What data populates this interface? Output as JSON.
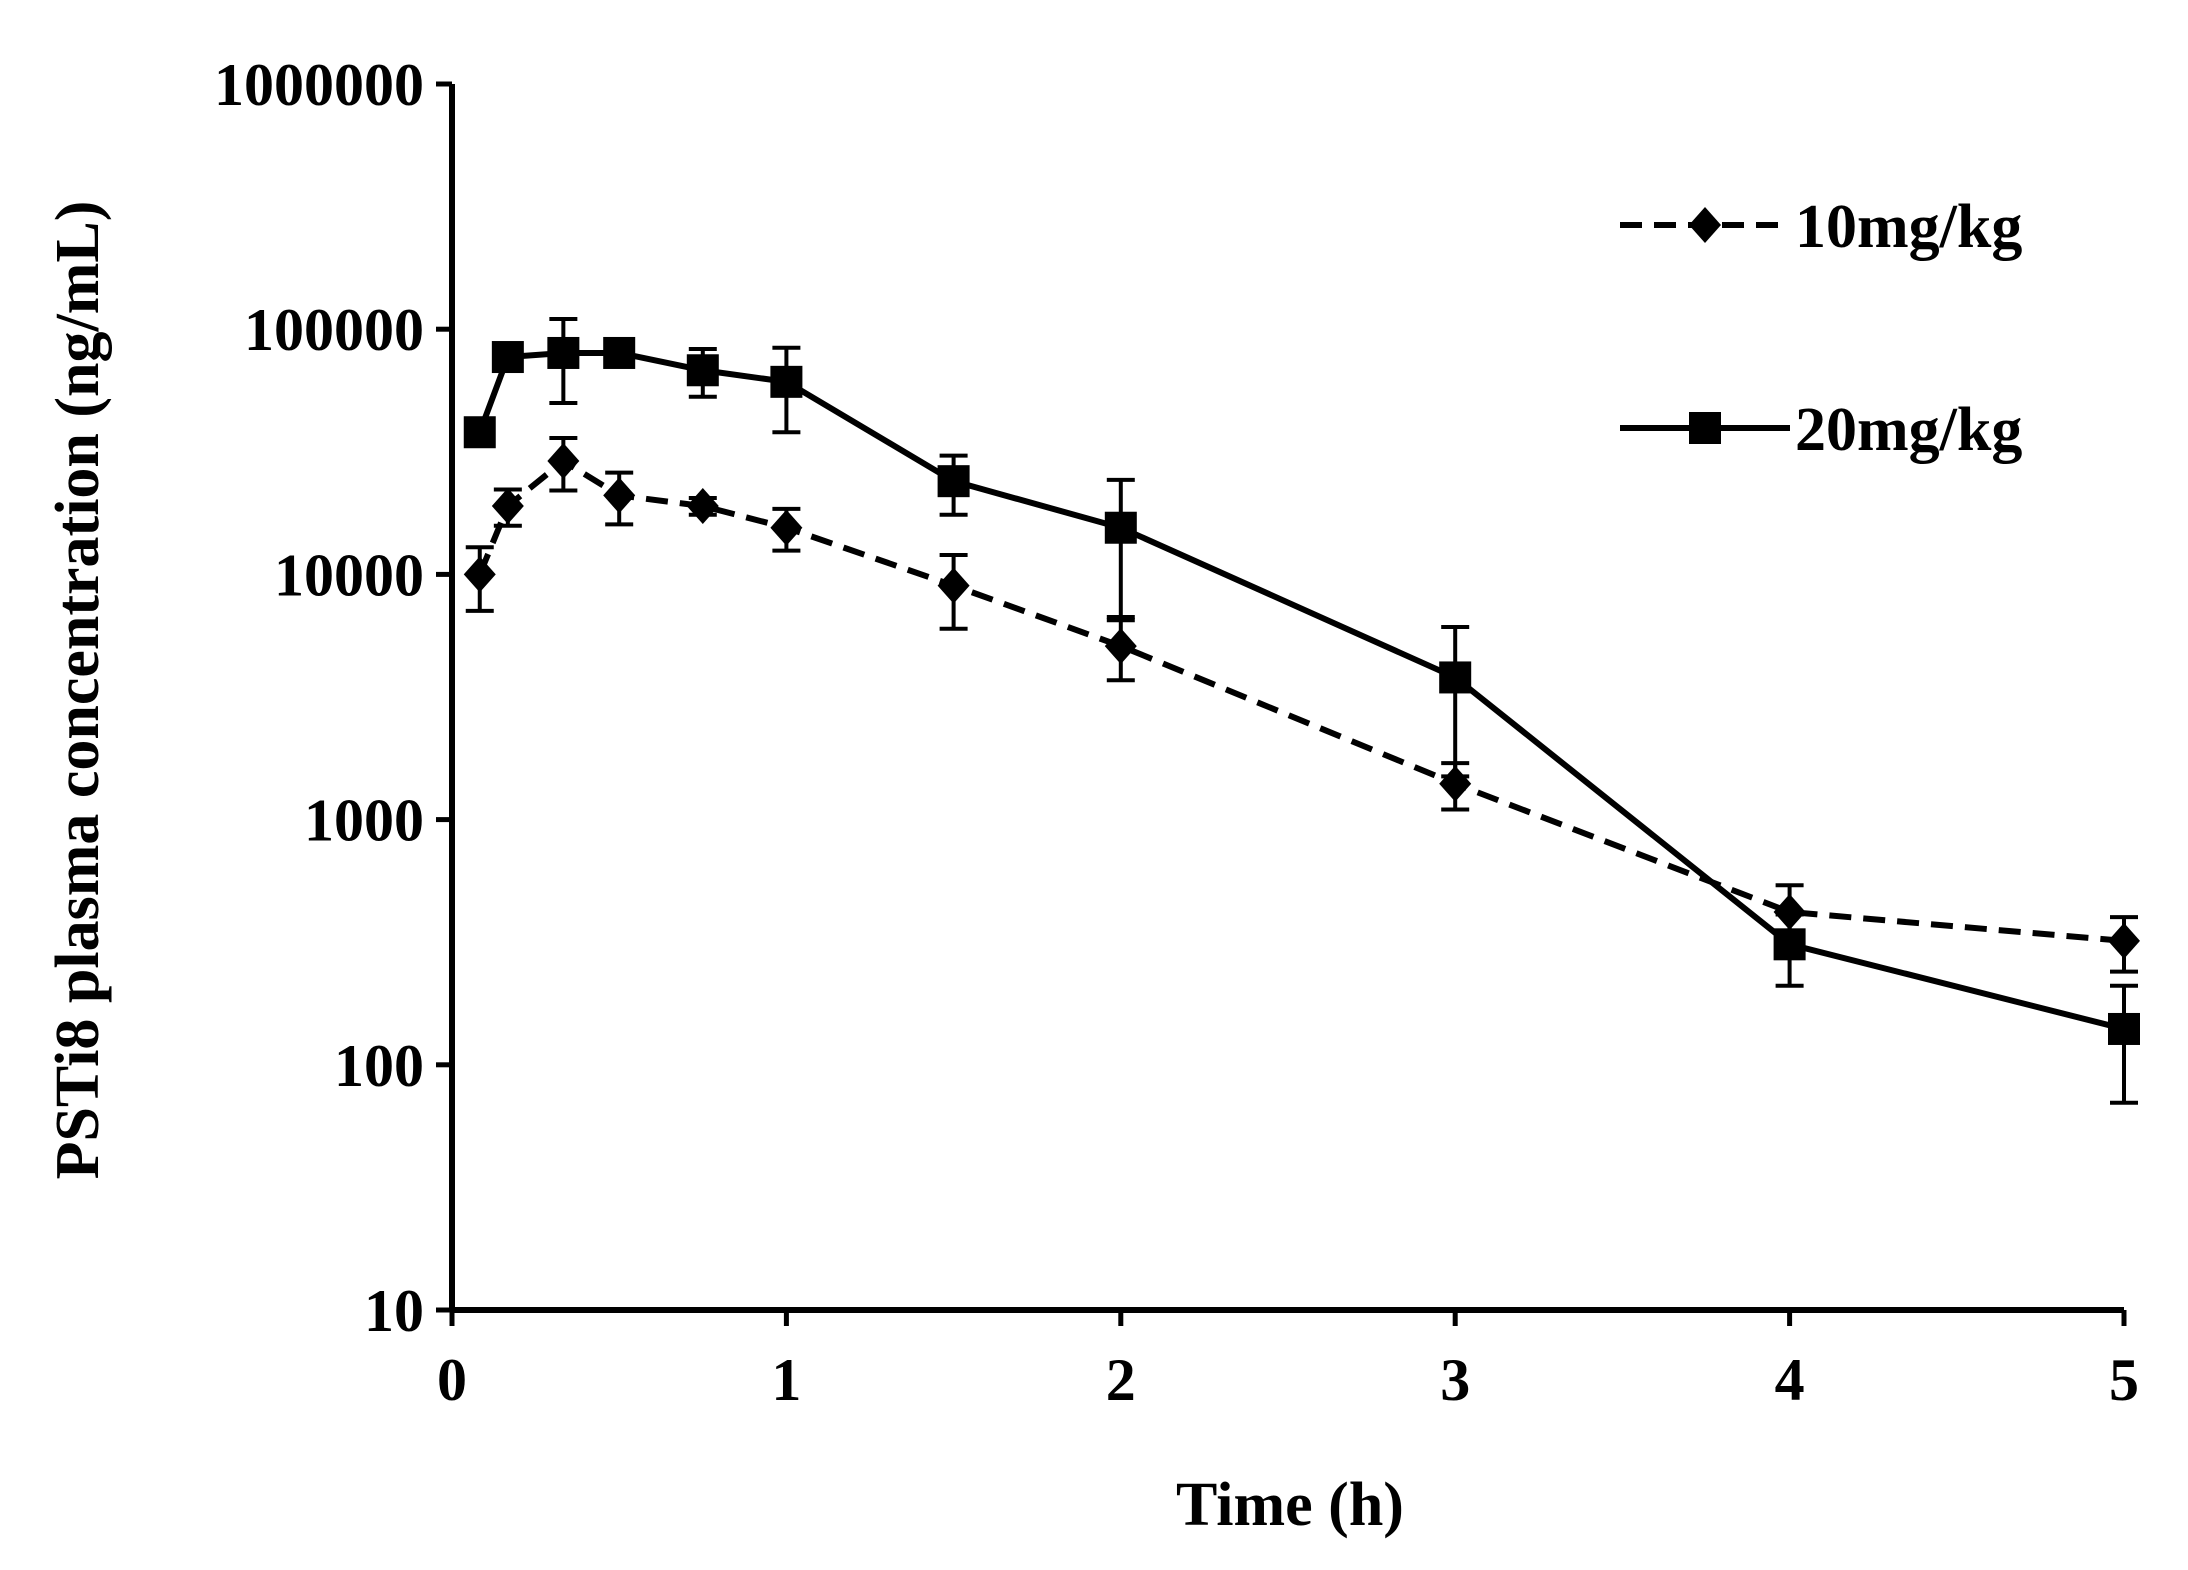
{
  "chart_data": {
    "type": "line",
    "title": "",
    "xlabel": "Time (h)",
    "ylabel": "PSTi8 plasma concentration (ng/mL)",
    "yscale": "log",
    "xlim": [
      0,
      5
    ],
    "ylim": [
      10,
      1000000
    ],
    "x_ticks": [
      "0",
      "1",
      "2",
      "3",
      "4",
      "5"
    ],
    "y_ticks": [
      "10",
      "100",
      "1000",
      "10000",
      "100000",
      "1000000"
    ],
    "grid": false,
    "legend_position": "top-right",
    "series": [
      {
        "name": "10mg/kg",
        "line_style": "dashed",
        "marker": "diamond",
        "x": [
          0.083,
          0.167,
          0.333,
          0.5,
          0.75,
          1,
          1.5,
          2,
          3,
          4,
          5
        ],
        "y": [
          10000,
          19000,
          29000,
          21000,
          19000,
          15500,
          9000,
          5100,
          1400,
          420,
          320
        ],
        "err": [
          2900,
          3200,
          7000,
          5000,
          1500,
          3000,
          3000,
          1400,
          300,
          120,
          80
        ]
      },
      {
        "name": "20mg/kg",
        "line_style": "solid",
        "marker": "square",
        "x": [
          0.083,
          0.167,
          0.333,
          0.5,
          0.75,
          1,
          1.5,
          2,
          3,
          4,
          5
        ],
        "y": [
          38000,
          77000,
          80000,
          80000,
          68000,
          61000,
          24000,
          15500,
          3800,
          310,
          140
        ],
        "err": [
          0,
          5000,
          30000,
          3000,
          15000,
          23000,
          6500,
          8800,
          2300,
          100,
          70
        ]
      }
    ]
  }
}
